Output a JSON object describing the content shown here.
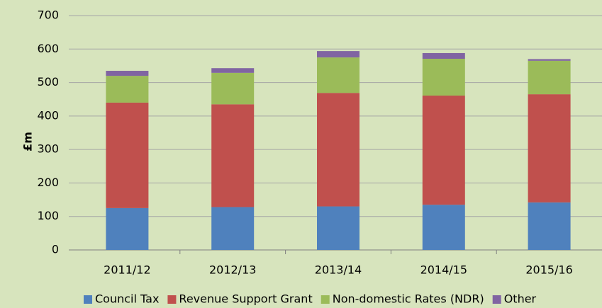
{
  "chart_data": {
    "type": "stacked_bar",
    "ylabel": "£m",
    "categories": [
      "2011/12",
      "2012/13",
      "2013/14",
      "2014/15",
      "2015/16"
    ],
    "series": [
      {
        "name": "Council Tax",
        "color": "#4f81bd",
        "values": [
          125,
          128,
          130,
          135,
          142
        ]
      },
      {
        "name": "Revenue Support Grant",
        "color": "#c0504d",
        "values": [
          315,
          307,
          339,
          326,
          323
        ]
      },
      {
        "name": "Non-domestic Rates (NDR)",
        "color": "#9bbb59",
        "values": [
          80,
          94,
          106,
          110,
          100
        ]
      },
      {
        "name": "Other",
        "color": "#8064a2",
        "values": [
          15,
          14,
          19,
          17,
          5
        ]
      }
    ],
    "ylim": [
      0,
      700
    ],
    "yticks": [
      0,
      100,
      200,
      300,
      400,
      500,
      600,
      700
    ],
    "grid": true
  }
}
